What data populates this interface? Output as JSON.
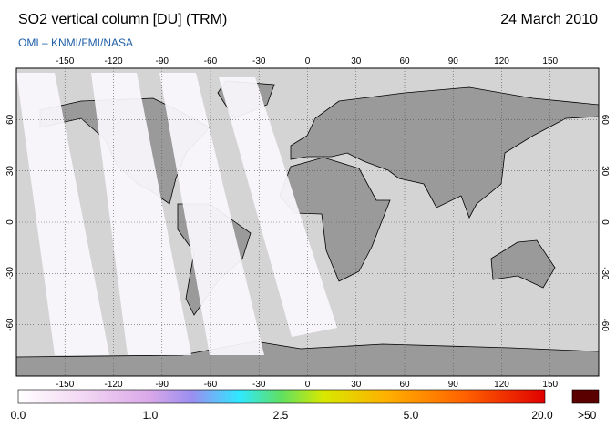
{
  "header": {
    "title": "SO2 vertical column [DU] (TRM)",
    "date": "24 March 2010",
    "subtitle": "OMI  –  KNMI/FMI/NASA"
  },
  "map": {
    "lon_ticks": [
      -150,
      -120,
      -90,
      -60,
      -30,
      0,
      30,
      60,
      90,
      120,
      150
    ],
    "lat_ticks": [
      -60,
      -30,
      0,
      30,
      60
    ]
  },
  "colorbar": {
    "labels": [
      "0.0",
      "1.0",
      "2.5",
      "5.0",
      "20.0"
    ],
    "overflow_label": ">50"
  }
}
